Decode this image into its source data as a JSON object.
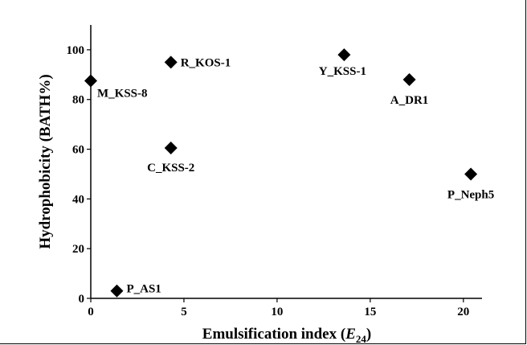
{
  "chart_data": {
    "type": "scatter",
    "xlabel": "Emulsification index (",
    "xlabel_var": "E",
    "xlabel_sub": "24",
    "xlabel_close": ")",
    "ylabel": "Hydrophobicity (BATH%)",
    "xlim": [
      0,
      21
    ],
    "ylim": [
      0,
      110
    ],
    "xticks": [
      0,
      5,
      10,
      15,
      20
    ],
    "yticks": [
      0,
      20,
      40,
      60,
      80,
      100
    ],
    "grid": false,
    "marker": "diamond",
    "marker_color": "#000000",
    "points": [
      {
        "label": "M_KSS-8",
        "x": 0.0,
        "y": 87.5
      },
      {
        "label": "R_KOS-1",
        "x": 4.3,
        "y": 95.0
      },
      {
        "label": "C_KSS-2",
        "x": 4.3,
        "y": 60.5
      },
      {
        "label": "P_AS1",
        "x": 1.4,
        "y": 3.0
      },
      {
        "label": "Y_KSS-1",
        "x": 13.6,
        "y": 98.0
      },
      {
        "label": "A_DR1",
        "x": 17.1,
        "y": 88.0
      },
      {
        "label": "P_Neph5",
        "x": 20.4,
        "y": 50.0
      }
    ]
  }
}
